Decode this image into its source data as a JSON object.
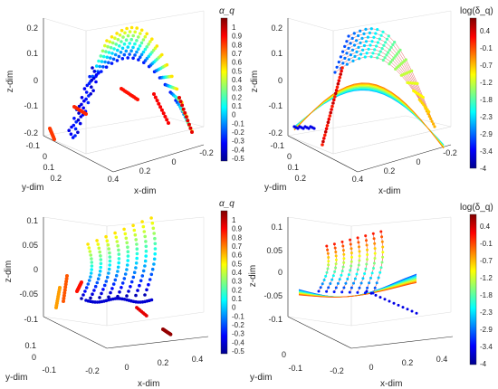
{
  "chart_data": [
    {
      "type": "scatter",
      "panel": "top-left",
      "xlabel": "x-dim",
      "ylabel": "y-dim",
      "zlabel": "z-dim",
      "xticks": [
        "0.4",
        "0.2",
        "0",
        "-0.2"
      ],
      "yticks": [
        "-0.1",
        "0",
        "0.1",
        "0.2"
      ],
      "zticks": [
        "0.2",
        "0.1",
        "0",
        "-0.1",
        "-0.2"
      ],
      "colorbar": {
        "label": "α_q",
        "ticks": [
          "1",
          "0.9",
          "0.8",
          "0.7",
          "0.6",
          "0.5",
          "0.4",
          "0.3",
          "0.2",
          "0.1",
          "0",
          "-0.1",
          "-0.2",
          "-0.3",
          "-0.4",
          "-0.5"
        ],
        "range": [
          -0.5,
          1
        ]
      },
      "colormap": "jet",
      "note": "3D embedding with scattered curves colored by alpha_q"
    },
    {
      "type": "scatter",
      "panel": "top-right",
      "xlabel": "x-dim",
      "ylabel": "y-dim",
      "zlabel": "z-dim",
      "xticks": [
        "0.4",
        "0.2",
        "0",
        "-0.2"
      ],
      "yticks": [
        "-0.1",
        "0",
        "0.1",
        "0.2"
      ],
      "zticks": [
        "0.2",
        "0.1",
        "0",
        "-0.1",
        "-0.2"
      ],
      "colorbar": {
        "label": "log(δ_q)",
        "ticks": [
          "0.4",
          "-0.1",
          "-0.7",
          "-1.2",
          "-1.8",
          "-2.3",
          "-2.9",
          "-3.4",
          "-4"
        ],
        "range": [
          -4,
          0.9
        ]
      },
      "colormap": "jet"
    },
    {
      "type": "scatter",
      "panel": "bottom-left",
      "xlabel": "x-dim",
      "ylabel": "y-dim",
      "zlabel": "z-dim",
      "xticks": [
        "-0.2",
        "0",
        "0.2",
        "0.4"
      ],
      "yticks": [
        "0.1",
        "0",
        "-0.1"
      ],
      "zticks": [
        "0.1",
        "0.05",
        "0",
        "-0.05",
        "-0.1"
      ],
      "colorbar": {
        "label": "α_q",
        "ticks": [
          "1",
          "0.9",
          "0.8",
          "0.7",
          "0.6",
          "0.5",
          "0.4",
          "0.3",
          "0.2",
          "0.1",
          "0",
          "-0.1",
          "-0.2",
          "-0.3",
          "-0.4",
          "-0.5"
        ],
        "range": [
          -0.5,
          1
        ]
      },
      "colormap": "jet"
    },
    {
      "type": "scatter",
      "panel": "bottom-right",
      "xlabel": "x-dim",
      "ylabel": "y-dim",
      "zlabel": "z-dim",
      "xticks": [
        "-0.2",
        "0",
        "0.2",
        "0.4"
      ],
      "yticks": [
        "0",
        "-0.1"
      ],
      "zticks": [
        "0.1",
        "0.05",
        "0",
        "-0.05",
        "-0.1"
      ],
      "colorbar": {
        "label": "log(δ_q)",
        "ticks": [
          "0.4",
          "-0.1",
          "-0.7",
          "-1.2",
          "-1.8",
          "-2.3",
          "-2.9",
          "-3.4",
          "-4"
        ],
        "range": [
          -4,
          0.9
        ]
      },
      "colormap": "jet"
    }
  ]
}
